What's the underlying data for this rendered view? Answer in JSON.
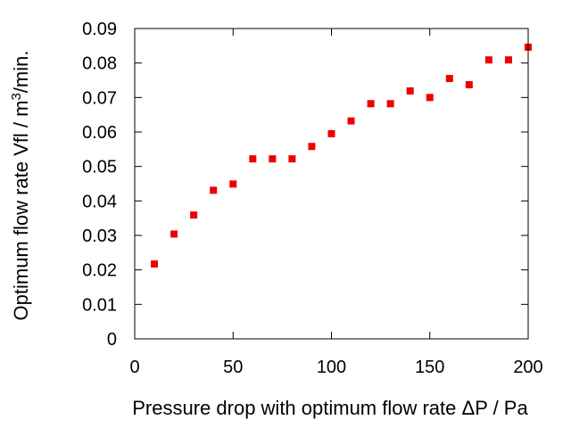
{
  "chart_data": {
    "type": "scatter",
    "xlabel": "Pressure drop with optimum flow rate ΔP / Pa",
    "ylabel_main": "Optimum flow rate Vfl / m",
    "ylabel_sup": "3",
    "ylabel_tail": "/min.",
    "xlim": [
      0,
      200
    ],
    "ylim": [
      0,
      0.09
    ],
    "xticks": [
      "0",
      "50",
      "100",
      "150",
      "200"
    ],
    "yticks": [
      "0",
      "0.01",
      "0.02",
      "0.03",
      "0.04",
      "0.05",
      "0.06",
      "0.07",
      "0.08",
      "0.09"
    ],
    "grid": false,
    "marker_color": "#ee0000",
    "series": [
      {
        "x": [
          10,
          20,
          30,
          40,
          50,
          60,
          70,
          80,
          90,
          100,
          110,
          120,
          130,
          140,
          150,
          160,
          170,
          180,
          190,
          200
        ],
        "y": [
          0.0217,
          0.0304,
          0.0359,
          0.0431,
          0.0449,
          0.0522,
          0.0522,
          0.0522,
          0.0558,
          0.0595,
          0.0632,
          0.0682,
          0.0682,
          0.0719,
          0.07,
          0.0755,
          0.0737,
          0.0809,
          0.0809,
          0.0846
        ]
      }
    ]
  }
}
